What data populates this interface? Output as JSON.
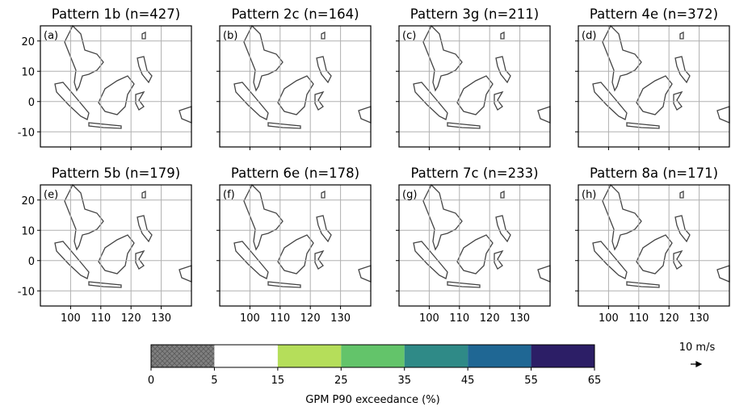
{
  "panels": [
    {
      "title": "Pattern 1b (n=427)",
      "label": "(a)"
    },
    {
      "title": "Pattern 2c (n=164)",
      "label": "(b)"
    },
    {
      "title": "Pattern 3g (n=211)",
      "label": "(c)"
    },
    {
      "title": "Pattern 4e (n=372)",
      "label": "(d)"
    },
    {
      "title": "Pattern 5b (n=179)",
      "label": "(e)"
    },
    {
      "title": "Pattern 6e (n=178)",
      "label": "(f)"
    },
    {
      "title": "Pattern 7c (n=233)",
      "label": "(g)"
    },
    {
      "title": "Pattern 8a (n=171)",
      "label": "(h)"
    }
  ],
  "map_axes": {
    "xlim": [
      90,
      140
    ],
    "ylim": [
      -15,
      25
    ],
    "xticks": [
      100,
      110,
      120,
      130
    ],
    "yticks": [
      -10,
      0,
      10,
      20
    ],
    "grid": true
  },
  "colorbar": {
    "bounds": [
      0,
      5,
      15,
      25,
      35,
      45,
      55,
      65
    ],
    "colors": [
      "#808080",
      "#ffffff",
      "#b5de5a",
      "#63c46a",
      "#2f8a87",
      "#1f6794",
      "#2c1e66"
    ],
    "hatched_first": true,
    "label": "GPM P90 exceedance (%)"
  },
  "reference_arrow": {
    "label": "10 m/s"
  }
}
